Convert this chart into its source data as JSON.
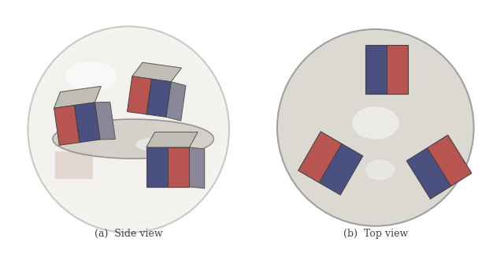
{
  "fig_width": 6.4,
  "fig_height": 3.31,
  "dpi": 100,
  "bg_color": "#ffffff",
  "blue_color": "#4a5080",
  "blue_top": "#5a6090",
  "blue_side": "#3a4070",
  "red_color": "#b85550",
  "red_top": "#c86560",
  "red_side": "#a04540",
  "caption_left": "(a)  Side view",
  "caption_right": "(b)  Top view",
  "caption_fontsize": 9,
  "caption_color": "#444444"
}
